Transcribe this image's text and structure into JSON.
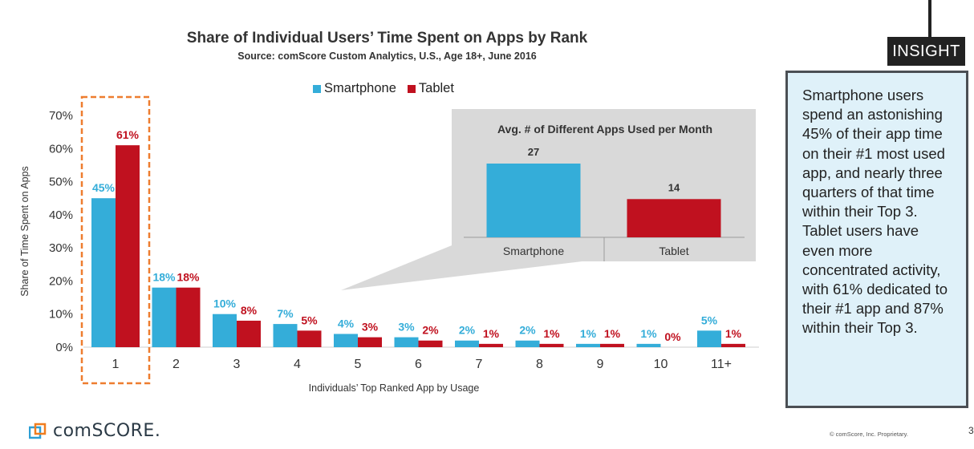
{
  "colors": {
    "smartphone": "#34add9",
    "tablet": "#c0111f",
    "inset_bg": "#d9d9d9",
    "highlight": "#ee7d2f"
  },
  "legend": {
    "smartphone": "Smartphone",
    "tablet": "Tablet"
  },
  "chart_data": [
    {
      "type": "bar",
      "title": "Share of Individual Users’ Time Spent on Apps by Rank",
      "subtitle": "Source: comScore Custom Analytics, U.S., Age 18+, June 2016",
      "xlabel": "Individuals’ Top Ranked App by Usage",
      "ylabel": "Share of Time Spent on Apps",
      "ylim": [
        0,
        70
      ],
      "yticks": [
        "0%",
        "10%",
        "20%",
        "30%",
        "40%",
        "50%",
        "60%",
        "70%"
      ],
      "categories": [
        "1",
        "2",
        "3",
        "4",
        "5",
        "6",
        "7",
        "8",
        "9",
        "10",
        "11+"
      ],
      "series": [
        {
          "name": "Smartphone",
          "values": [
            45,
            18,
            10,
            7,
            4,
            3,
            2,
            2,
            1,
            1,
            5
          ],
          "labels": [
            "45%",
            "18%",
            "10%",
            "7%",
            "4%",
            "3%",
            "2%",
            "2%",
            "1%",
            "1%",
            "5%"
          ]
        },
        {
          "name": "Tablet",
          "values": [
            61,
            18,
            8,
            5,
            3,
            2,
            1,
            1,
            1,
            0,
            1
          ],
          "labels": [
            "61%",
            "18%",
            "8%",
            "5%",
            "3%",
            "2%",
            "1%",
            "1%",
            "1%",
            "0%",
            "1%"
          ]
        }
      ],
      "highlighted_category": "1",
      "legend_position": "top",
      "grid": false
    },
    {
      "type": "bar",
      "title": "Avg. # of Different Apps Used per Month",
      "categories": [
        "Smartphone",
        "Tablet"
      ],
      "values": [
        27,
        14
      ],
      "labels": [
        "27",
        "14"
      ]
    }
  ],
  "insight": {
    "tag": "INSIGHT",
    "text": "Smartphone users spend an astonishing 45% of their app time on their #1 most used app, and nearly three quarters of that time within their Top 3. Tablet users have even more concentrated activity, with 61% dedicated to their #1 app and 87% within their Top 3."
  },
  "logo_text": "comSCORE.",
  "footer": "© comScore, Inc. Proprietary.",
  "page_number": "3"
}
